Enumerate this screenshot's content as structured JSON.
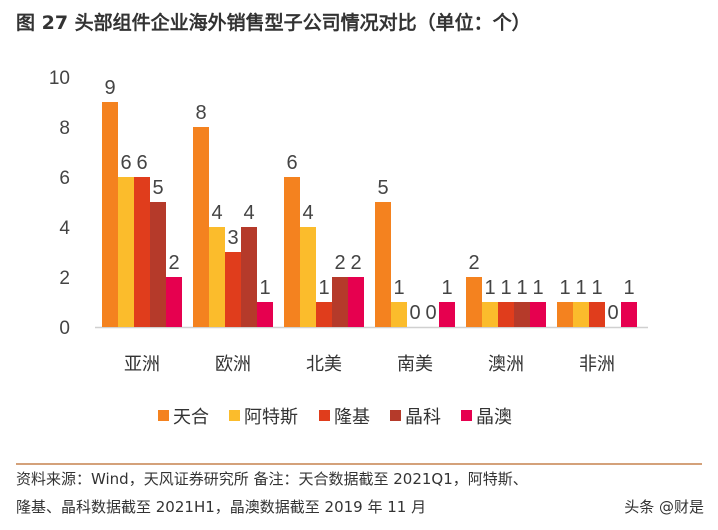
{
  "title": "图 27 头部组件企业海外销售型子公司情况对比（单位：个）",
  "chart_data": {
    "type": "bar",
    "categories": [
      "亚洲",
      "欧洲",
      "北美",
      "南美",
      "澳洲",
      "非洲"
    ],
    "series": [
      {
        "name": "天合",
        "color": "#F4821F",
        "values": [
          9,
          8,
          6,
          5,
          2,
          1
        ]
      },
      {
        "name": "阿特斯",
        "color": "#FBBC2C",
        "values": [
          6,
          4,
          4,
          1,
          1,
          1
        ]
      },
      {
        "name": "隆基",
        "color": "#E03D1C",
        "values": [
          6,
          3,
          1,
          0,
          1,
          1
        ]
      },
      {
        "name": "晶科",
        "color": "#B53A2A",
        "values": [
          5,
          4,
          2,
          0,
          1,
          0
        ]
      },
      {
        "name": "晶澳",
        "color": "#E6004F",
        "values": [
          2,
          1,
          2,
          1,
          1,
          1
        ]
      }
    ],
    "ylim": [
      0,
      10
    ],
    "yticks": [
      "0",
      "2",
      "4",
      "6",
      "8",
      "10"
    ],
    "grid": false,
    "legend": "bottom",
    "data_labels": true
  },
  "footer": {
    "source_line1": "资料来源：Wind，天风证券研究所        备注：天合数据截至 2021Q1，阿特斯、",
    "source_line2": "隆基、晶科数据截至 2021H1，晶澳数据截至 2019 年 11 月",
    "watermark": "头条 @财是"
  }
}
